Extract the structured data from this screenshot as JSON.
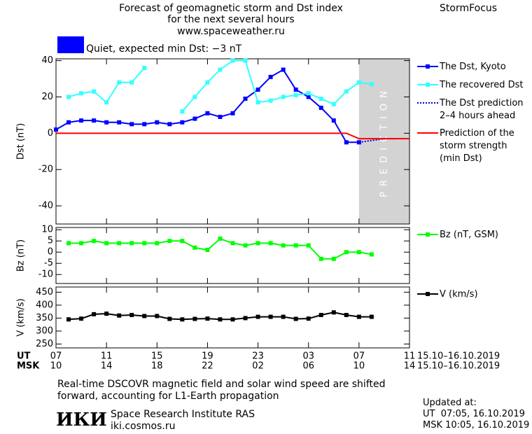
{
  "header": {
    "title": "Forecast of geomagnetic storm and Dst index\nfor the next several hours",
    "url": "www.spaceweather.ru",
    "brand": "StormFocus"
  },
  "status": {
    "text": "Quiet, expected min Dst: −3 nT",
    "color": "#0000ff"
  },
  "chart_data": [
    {
      "type": "line",
      "ylabel": "Dst (nT)",
      "xlim": [
        0,
        28
      ],
      "ylim": [
        -50,
        41
      ],
      "yticks": [
        -40,
        -20,
        0,
        20,
        40
      ],
      "band": {
        "xlim": [
          24,
          28
        ],
        "label": "PREDICTION",
        "color": "#d3d3d3"
      },
      "series": [
        {
          "name": "The Dst, Kyoto",
          "color": "#0000ff",
          "marker": "square",
          "x": [
            0,
            1,
            2,
            3,
            4,
            5,
            6,
            7,
            8,
            9,
            10,
            11,
            12,
            13,
            14,
            15,
            16,
            17,
            18,
            19,
            20,
            21,
            22,
            23,
            24
          ],
          "values": [
            2,
            6,
            7,
            7,
            6,
            6,
            5,
            5,
            6,
            5,
            6,
            8,
            11,
            9,
            11,
            19,
            24,
            31,
            35,
            24,
            20,
            14,
            7,
            -5,
            -5
          ]
        },
        {
          "name": "The recovered Dst",
          "color": "#33ffff",
          "marker": "square",
          "x": [
            1,
            2,
            3,
            4,
            5,
            6,
            7,
            8,
            9,
            10,
            11,
            12,
            13,
            14,
            15,
            16,
            17,
            18,
            19,
            20,
            21,
            22,
            23,
            24,
            25
          ],
          "values": [
            20,
            22,
            23,
            17,
            28,
            28,
            36,
            null,
            null,
            12,
            20,
            28,
            35,
            40,
            40,
            17,
            18,
            20,
            21,
            22,
            19,
            16,
            23,
            28,
            27
          ]
        },
        {
          "name": "The Dst prediction\n2–4 hours ahead",
          "color": "#0000cc",
          "dash": true,
          "x": [
            24,
            25,
            26,
            27
          ],
          "values": [
            -5,
            -4,
            -3,
            -3
          ]
        },
        {
          "name": "Prediction of the\nstorm strength\n(min Dst)",
          "color": "#ff0000",
          "x": [
            0,
            23,
            24,
            28
          ],
          "values": [
            0,
            0,
            -3,
            -3
          ]
        }
      ]
    },
    {
      "type": "line",
      "ylabel": "Bz (nT)",
      "xlim": [
        0,
        28
      ],
      "ylim": [
        -14,
        11
      ],
      "yticks": [
        -10,
        -5,
        0,
        5,
        10
      ],
      "series": [
        {
          "name": "Bz (nT, GSM)",
          "color": "#00ff00",
          "marker": "square",
          "x": [
            1,
            2,
            3,
            4,
            5,
            6,
            7,
            8,
            9,
            10,
            11,
            12,
            13,
            14,
            15,
            16,
            17,
            18,
            19,
            20,
            21,
            22,
            23,
            24,
            25
          ],
          "values": [
            4,
            4,
            5,
            4,
            4,
            4,
            4,
            4,
            5,
            5,
            2,
            1,
            6,
            4,
            3,
            4,
            4,
            3,
            3,
            3,
            -3,
            -3,
            0,
            0,
            -1
          ]
        }
      ]
    },
    {
      "type": "line",
      "ylabel": "V (km/s)",
      "xlim": [
        0,
        28
      ],
      "ylim": [
        235,
        470
      ],
      "yticks": [
        250,
        300,
        350,
        400,
        450
      ],
      "xticks": [
        {
          "value": 0,
          "label": "07"
        },
        {
          "value": 4,
          "label": "11"
        },
        {
          "value": 8,
          "label": "15"
        },
        {
          "value": 12,
          "label": "19"
        },
        {
          "value": 16,
          "label": "23"
        },
        {
          "value": 20,
          "label": "03"
        },
        {
          "value": 24,
          "label": "07"
        },
        {
          "value": 28,
          "label": "11"
        }
      ],
      "msk_ticks": [
        {
          "value": 0,
          "label": "10"
        },
        {
          "value": 4,
          "label": "14"
        },
        {
          "value": 8,
          "label": "18"
        },
        {
          "value": 12,
          "label": "22"
        },
        {
          "value": 16,
          "label": "02"
        },
        {
          "value": 20,
          "label": "06"
        },
        {
          "value": 24,
          "label": "10"
        },
        {
          "value": 28,
          "label": "14"
        }
      ],
      "x_rows": [
        {
          "name": "UT",
          "dates": "15.10–16.10.2019"
        },
        {
          "name": "MSK",
          "dates": "15.10–16.10.2019"
        }
      ],
      "series": [
        {
          "name": "V (km/s)",
          "color": "#000000",
          "marker": "square",
          "x": [
            1,
            2,
            3,
            4,
            5,
            6,
            7,
            8,
            9,
            10,
            11,
            12,
            13,
            14,
            15,
            16,
            17,
            18,
            19,
            20,
            21,
            22,
            23,
            24,
            25
          ],
          "values": [
            345,
            348,
            365,
            367,
            360,
            362,
            358,
            358,
            347,
            345,
            347,
            348,
            345,
            345,
            350,
            355,
            355,
            355,
            347,
            348,
            362,
            372,
            362,
            355,
            355
          ]
        }
      ]
    }
  ],
  "footer": {
    "note": "Real-time DSCOVR magnetic field and solar wind speed are shifted\nforward, accounting for L1-Earth propagation",
    "logo": "ИКИ",
    "institute": "Space Research Institute RAS",
    "site": "iki.cosmos.ru",
    "updated": "Updated at:",
    "updated_ut": "UT  07:05, 16.10.2019",
    "updated_msk": "MSK 10:05, 16.10.2019"
  }
}
